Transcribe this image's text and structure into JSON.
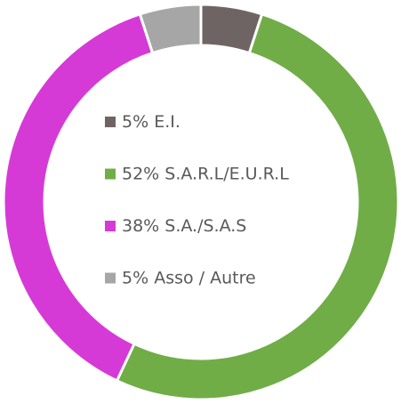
{
  "chart_data": {
    "type": "donut",
    "categories": [
      "E.I.",
      "S.A.R.L/E.U.R.L",
      "S.A./S.A.S",
      "Asso / Autre"
    ],
    "values": [
      5,
      52,
      38,
      5
    ],
    "value_labels": [
      "5%",
      "52%",
      "38%",
      "5%"
    ],
    "colors": [
      "#6f6464",
      "#70ad47",
      "#d63ad6",
      "#a6a6a6"
    ]
  }
}
